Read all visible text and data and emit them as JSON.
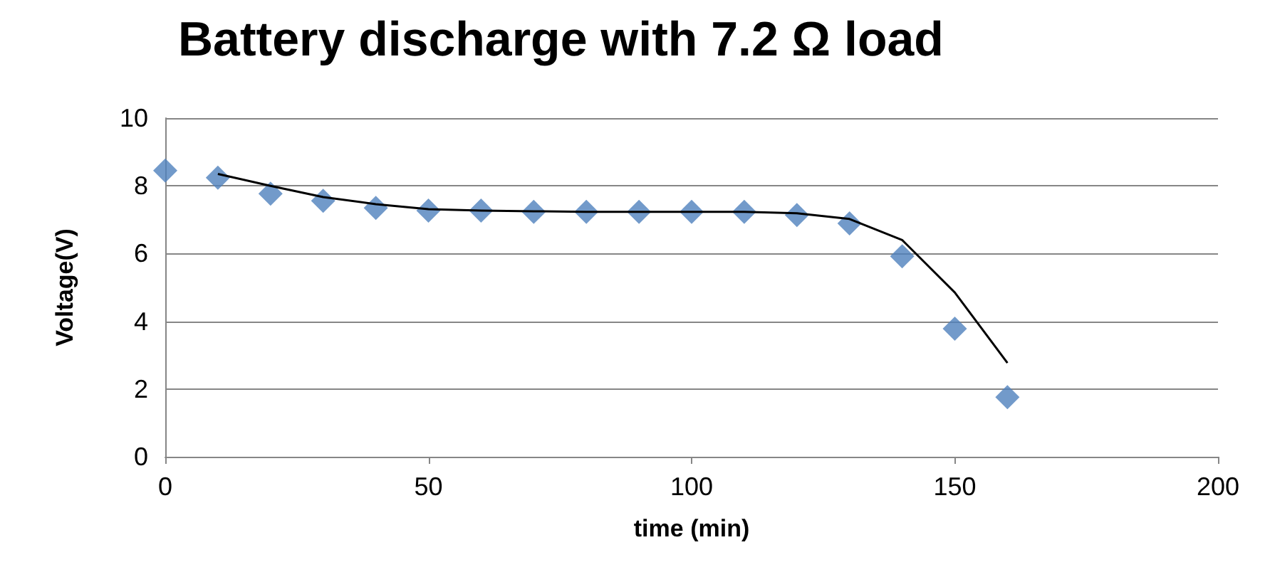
{
  "chart_data": {
    "type": "scatter",
    "title": "Battery discharge with 7.2 Ω load",
    "xlabel": "time (min)",
    "ylabel": "Voltage(V)",
    "xlim": [
      0,
      200
    ],
    "xticks": [
      0,
      50,
      100,
      150,
      200
    ],
    "ylim": [
      0,
      10
    ],
    "yticks": [
      0,
      2,
      4,
      6,
      8,
      10
    ],
    "grid": "y",
    "series": [
      {
        "marker": "diamond",
        "color": "#4f81bd",
        "x": [
          0,
          10,
          20,
          30,
          40,
          50,
          60,
          70,
          80,
          90,
          100,
          110,
          120,
          130,
          140,
          150,
          160
        ],
        "values": [
          8.45,
          8.24,
          7.77,
          7.56,
          7.35,
          7.27,
          7.27,
          7.23,
          7.23,
          7.23,
          7.23,
          7.23,
          7.14,
          6.89,
          5.92,
          3.78,
          1.76
        ]
      },
      {
        "type": "line",
        "color": "#000000",
        "line_style": "solid",
        "x": [
          10,
          20,
          30,
          40,
          50,
          60,
          70,
          80,
          90,
          100,
          110,
          120,
          130,
          140,
          150,
          160
        ],
        "values": [
          8.35,
          8.0,
          7.67,
          7.46,
          7.31,
          7.27,
          7.25,
          7.23,
          7.23,
          7.23,
          7.23,
          7.19,
          7.02,
          6.4,
          4.85,
          2.77
        ]
      }
    ]
  }
}
